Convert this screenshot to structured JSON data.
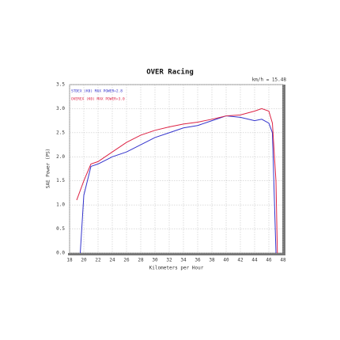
{
  "chart_data": {
    "type": "line",
    "title": "OVER Racing",
    "note": "km/h = 15.48",
    "xlabel": "Kilometers per Hour",
    "ylabel": "SAE Power (PS)",
    "xlim": [
      18,
      48
    ],
    "xticks": [
      18,
      20,
      22,
      24,
      26,
      28,
      30,
      32,
      34,
      36,
      38,
      40,
      42,
      44,
      46,
      48
    ],
    "ylim": [
      0,
      3.5
    ],
    "yticks": [
      {
        "value": 0,
        "label": "0.0"
      },
      {
        "value": 0.5,
        "label": "0.5"
      },
      {
        "value": 1,
        "label": "1.0"
      },
      {
        "value": 1.5,
        "label": "1.5"
      },
      {
        "value": 2,
        "label": "2.0"
      },
      {
        "value": 2.5,
        "label": "2.5"
      },
      {
        "value": 3,
        "label": "3.0"
      },
      {
        "value": 3.5,
        "label": "3.5"
      }
    ],
    "grid": true,
    "series": [
      {
        "name": "STDEX (K0)  MAX POWER=2.8",
        "color": "#3333cc",
        "x": [
          19.5,
          20,
          21,
          22,
          24,
          26,
          28,
          30,
          32,
          34,
          36,
          38,
          40,
          42,
          44,
          45,
          46,
          46.5,
          47
        ],
        "values": [
          0,
          1.2,
          1.8,
          1.85,
          2.0,
          2.1,
          2.25,
          2.4,
          2.5,
          2.6,
          2.65,
          2.75,
          2.85,
          2.82,
          2.75,
          2.78,
          2.7,
          2.5,
          0
        ]
      },
      {
        "name": "OVEREX (K0)  MAX POWER=3.0",
        "color": "#dd2244",
        "x": [
          19,
          20,
          21,
          22,
          24,
          26,
          28,
          30,
          32,
          34,
          36,
          38,
          40,
          42,
          44,
          45,
          46,
          46.5,
          47,
          47.2
        ],
        "values": [
          1.1,
          1.5,
          1.85,
          1.9,
          2.1,
          2.3,
          2.45,
          2.55,
          2.62,
          2.68,
          2.72,
          2.78,
          2.85,
          2.87,
          2.95,
          3.0,
          2.95,
          2.7,
          1.5,
          0
        ]
      }
    ]
  }
}
